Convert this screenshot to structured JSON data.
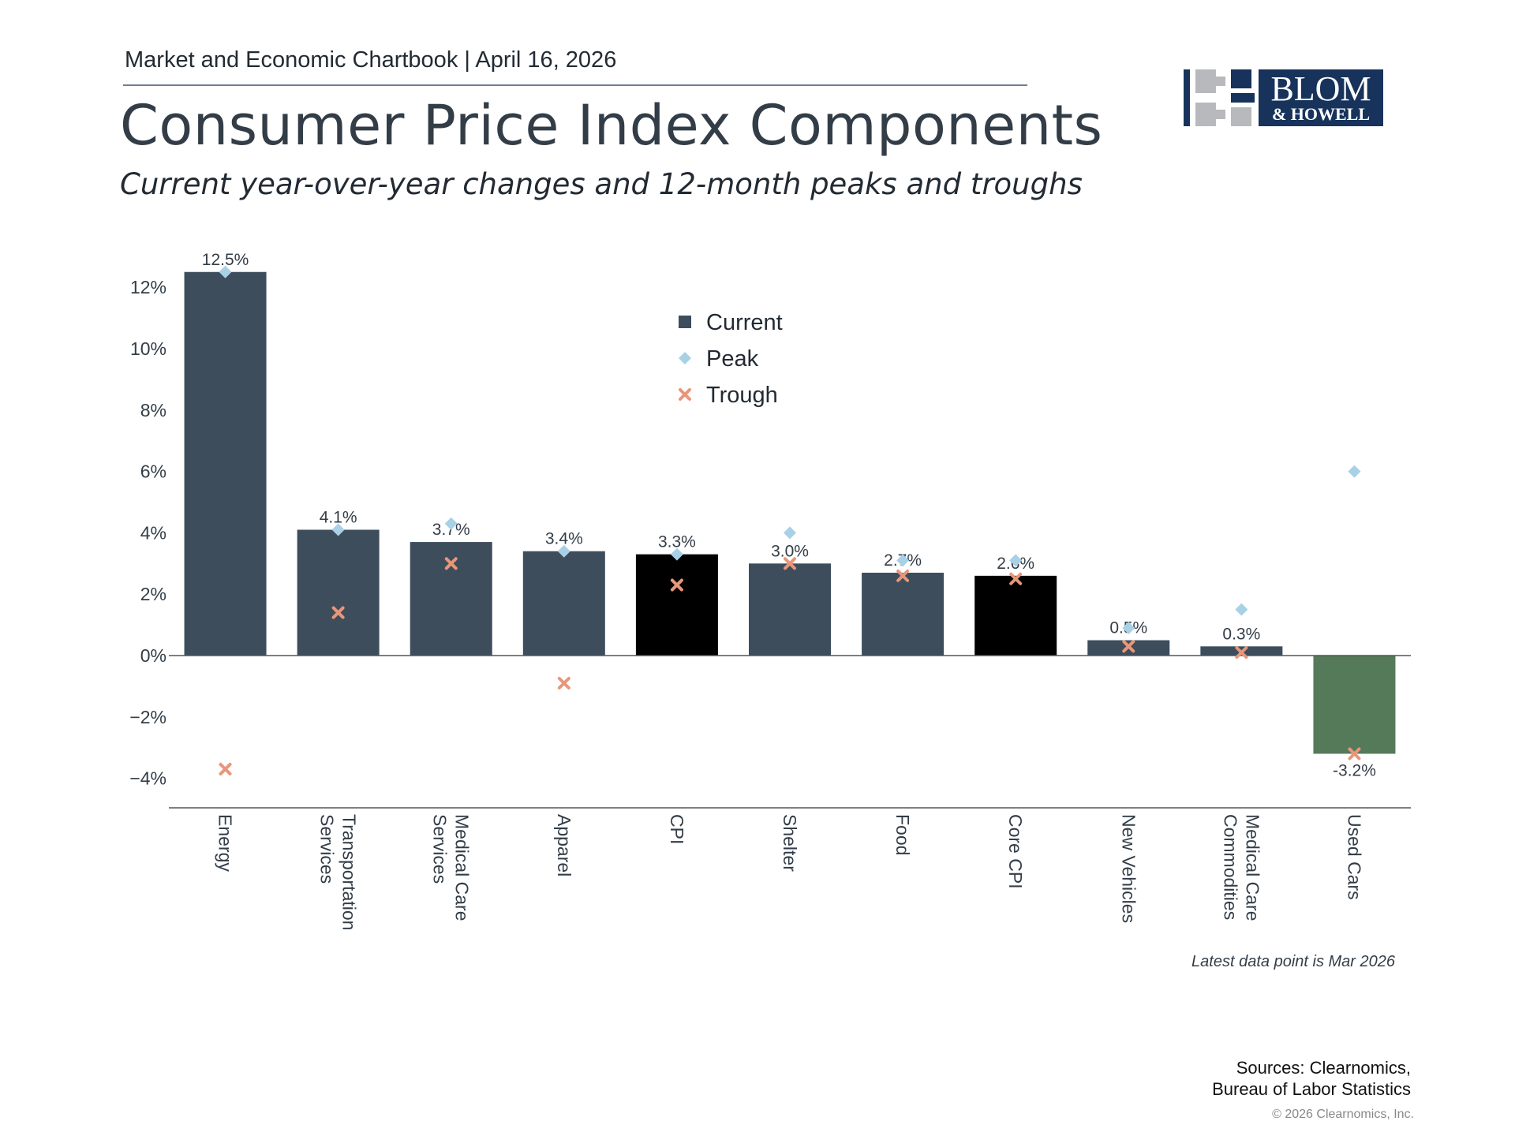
{
  "header": {
    "text": "Market and Economic Chartbook | April 16, 2026"
  },
  "title": "Consumer Price Index Components",
  "subtitle": "Current year-over-year changes and 12-month peaks and troughs",
  "logo": {
    "line1": "BLOM",
    "line2": "& HOWELL",
    "colors": {
      "navy": "#17335b",
      "gray": "#b7b9bc"
    }
  },
  "chart_data": {
    "type": "bar",
    "categories": [
      "Energy",
      "Transportation\nServices",
      "Medical Care\nServices",
      "Apparel",
      "CPI",
      "Shelter",
      "Food",
      "Core CPI",
      "New Vehicles",
      "Medical Care\nCommodities",
      "Used Cars"
    ],
    "series": [
      {
        "name": "Current",
        "values": [
          12.5,
          4.1,
          3.7,
          3.4,
          3.3,
          3.0,
          2.7,
          2.6,
          0.5,
          0.3,
          -3.2
        ]
      },
      {
        "name": "Peak",
        "values": [
          12.5,
          4.1,
          4.3,
          3.4,
          3.3,
          4.0,
          3.1,
          3.1,
          0.9,
          1.5,
          6.0
        ]
      },
      {
        "name": "Trough",
        "values": [
          -3.7,
          1.4,
          3.0,
          -0.9,
          2.3,
          3.0,
          2.6,
          2.5,
          0.3,
          0.1,
          -3.2
        ]
      }
    ],
    "data_labels": [
      "12.5%",
      "4.1%",
      "3.7%",
      "3.4%",
      "3.3%",
      "3.0%",
      "2.7%",
      "2.6%",
      "0.5%",
      "0.3%",
      "-3.2%"
    ],
    "bar_colors": [
      "#3d4d5c",
      "#3d4d5c",
      "#3d4d5c",
      "#3d4d5c",
      "#000000",
      "#3d4d5c",
      "#3d4d5c",
      "#000000",
      "#3d4d5c",
      "#3d4d5c",
      "#557a5a"
    ],
    "colors": {
      "current": "#3d4d5c",
      "peak": "#a8d1e6",
      "trough": "#e8967a",
      "highlight": "#000000",
      "negative": "#557a5a"
    },
    "yticks": [
      12,
      10,
      8,
      6,
      4,
      2,
      0,
      -2,
      -4
    ],
    "ytick_labels": [
      "12%",
      "10%",
      "8%",
      "6%",
      "4%",
      "2%",
      "0%",
      "−2%",
      "−4%"
    ],
    "ylim": [
      -4.9,
      13.5
    ],
    "legend": [
      "Current",
      "Peak",
      "Trough"
    ],
    "legend_position": "top-center",
    "grid": false
  },
  "footer": {
    "note": "Latest data point is Mar 2026",
    "sources_line1": "Sources: Clearnomics,",
    "sources_line2": "Bureau of Labor Statistics",
    "copyright": "© 2026 Clearnomics, Inc."
  }
}
